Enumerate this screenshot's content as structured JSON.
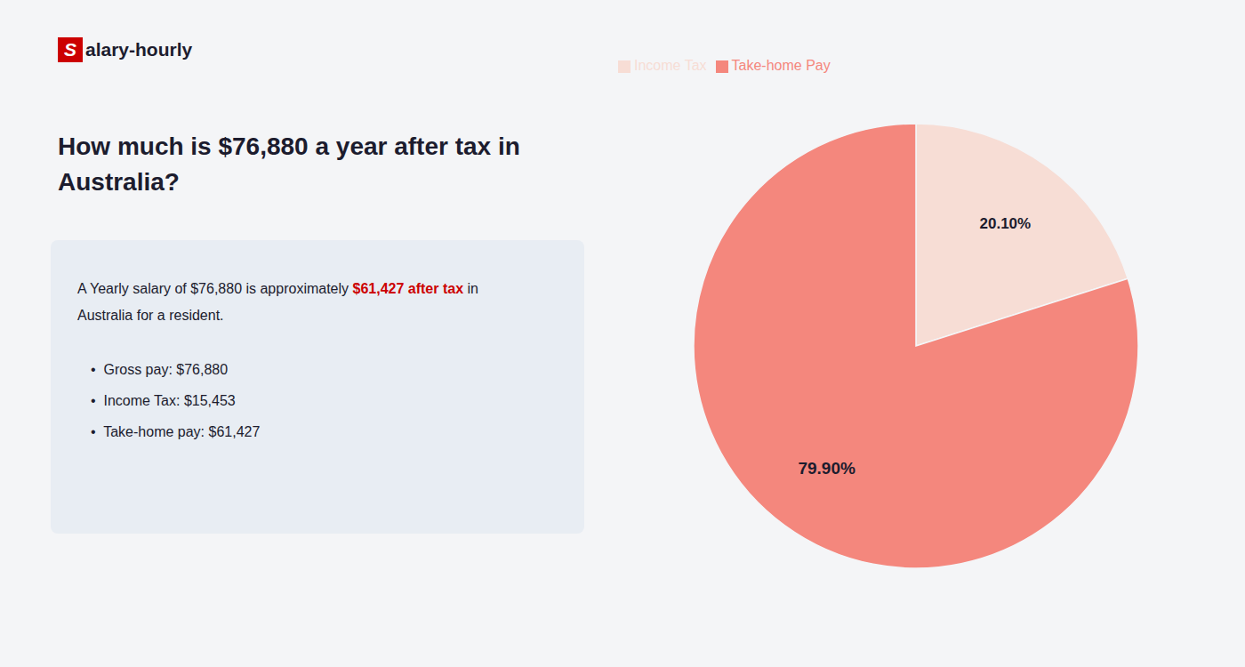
{
  "chart_data": {
    "type": "pie",
    "title": "How much is $76,880 a year after tax in Australia?",
    "annotations": [
      "S",
      "alary-hourly",
      "A Yearly salary of $76,880 is approximately ",
      "$61,427 after tax",
      " in",
      "Australia for a resident.",
      "•  Gross pay: $76,880",
      "•  Income Tax: $15,453",
      "•  Take-home pay: $61,427"
    ],
    "categories": [
      "Income Tax",
      "Take-home Pay"
    ],
    "values": [
      20.1,
      79.9
    ],
    "value_labels": [
      "20.10%",
      "79.90%"
    ],
    "colors": [
      "#f7ddd5",
      "#f4877d"
    ],
    "data_labels": true,
    "legend": "upper left"
  }
}
